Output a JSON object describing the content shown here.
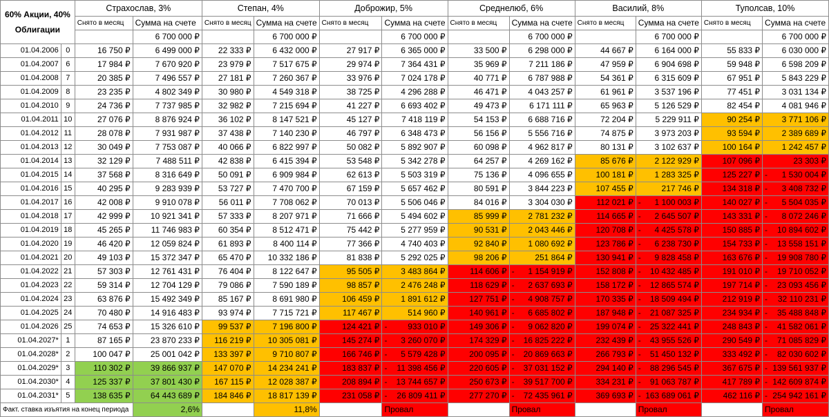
{
  "corner_label": "60% Акции, 40% Облигации",
  "sub_headers": {
    "withdraw": "Снято в месяц",
    "balance": "Сумма на счете"
  },
  "initial_balance": "6 700 000 ₽",
  "footer": {
    "label": "Факт. ставка изъятия на конец периода"
  },
  "colors": {
    "green": "#92d050",
    "yellow": "#ffc000",
    "red": "#ff0000"
  },
  "strategies": [
    {
      "name": "Страхослав, 3%",
      "result": "2,6%"
    },
    {
      "name": "Степан, 4%",
      "result": "11,8%"
    },
    {
      "name": "Доброжир, 5%",
      "result": "Провал"
    },
    {
      "name": "Среднелюб, 6%",
      "result": "Провал"
    },
    {
      "name": "Василий, 8%",
      "result": "Провал"
    },
    {
      "name": "Туполсав, 10%",
      "result": "Провал"
    }
  ],
  "rows": [
    {
      "date": "01.04.2006",
      "idx": "0",
      "cells": [
        [
          "16 750 ₽",
          "6 499 000 ₽",
          "w"
        ],
        [
          "22 333 ₽",
          "6 432 000 ₽",
          "w"
        ],
        [
          "27 917 ₽",
          "6 365 000 ₽",
          "w"
        ],
        [
          "33 500 ₽",
          "6 298 000 ₽",
          "w"
        ],
        [
          "44 667 ₽",
          "6 164 000 ₽",
          "w"
        ],
        [
          "55 833 ₽",
          "6 030 000 ₽",
          "w"
        ]
      ]
    },
    {
      "date": "01.04.2007",
      "idx": "6",
      "cells": [
        [
          "17 984 ₽",
          "7 670 920 ₽",
          "w"
        ],
        [
          "23 979 ₽",
          "7 517 675 ₽",
          "w"
        ],
        [
          "29 974 ₽",
          "7 364 431 ₽",
          "w"
        ],
        [
          "35 969 ₽",
          "7 211 186 ₽",
          "w"
        ],
        [
          "47 959 ₽",
          "6 904 698 ₽",
          "w"
        ],
        [
          "59 948 ₽",
          "6 598 209 ₽",
          "w"
        ]
      ]
    },
    {
      "date": "01.04.2008",
      "idx": "7",
      "cells": [
        [
          "20 385 ₽",
          "7 496 557 ₽",
          "w"
        ],
        [
          "27 181 ₽",
          "7 260 367 ₽",
          "w"
        ],
        [
          "33 976 ₽",
          "7 024 178 ₽",
          "w"
        ],
        [
          "40 771 ₽",
          "6 787 988 ₽",
          "w"
        ],
        [
          "54 361 ₽",
          "6 315 609 ₽",
          "w"
        ],
        [
          "67 951 ₽",
          "5 843 229 ₽",
          "w"
        ]
      ]
    },
    {
      "date": "01.04.2009",
      "idx": "8",
      "cells": [
        [
          "23 235 ₽",
          "4 802 349 ₽",
          "w"
        ],
        [
          "30 980 ₽",
          "4 549 318 ₽",
          "w"
        ],
        [
          "38 725 ₽",
          "4 296 288 ₽",
          "w"
        ],
        [
          "46 471 ₽",
          "4 043 257 ₽",
          "w"
        ],
        [
          "61 961 ₽",
          "3 537 196 ₽",
          "w"
        ],
        [
          "77 451 ₽",
          "3 031 134 ₽",
          "w"
        ]
      ]
    },
    {
      "date": "01.04.2010",
      "idx": "9",
      "cells": [
        [
          "24 736 ₽",
          "7 737 985 ₽",
          "w"
        ],
        [
          "32 982 ₽",
          "7 215 694 ₽",
          "w"
        ],
        [
          "41 227 ₽",
          "6 693 402 ₽",
          "w"
        ],
        [
          "49 473 ₽",
          "6 171 111 ₽",
          "w"
        ],
        [
          "65 963 ₽",
          "5 126 529 ₽",
          "w"
        ],
        [
          "82 454 ₽",
          "4 081 946 ₽",
          "w"
        ]
      ]
    },
    {
      "date": "01.04.2011",
      "idx": "10",
      "cells": [
        [
          "27 076 ₽",
          "8 876 924 ₽",
          "w"
        ],
        [
          "36 102 ₽",
          "8 147 521 ₽",
          "w"
        ],
        [
          "45 127 ₽",
          "7 418 119 ₽",
          "w"
        ],
        [
          "54 153 ₽",
          "6 688 716 ₽",
          "w"
        ],
        [
          "72 204 ₽",
          "5 229 911 ₽",
          "w"
        ],
        [
          "90 254 ₽",
          "3 771 106 ₽",
          "y"
        ]
      ]
    },
    {
      "date": "01.04.2012",
      "idx": "11",
      "cells": [
        [
          "28 078 ₽",
          "7 931 987 ₽",
          "w"
        ],
        [
          "37 438 ₽",
          "7 140 230 ₽",
          "w"
        ],
        [
          "46 797 ₽",
          "6 348 473 ₽",
          "w"
        ],
        [
          "56 156 ₽",
          "5 556 716 ₽",
          "w"
        ],
        [
          "74 875 ₽",
          "3 973 203 ₽",
          "w"
        ],
        [
          "93 594 ₽",
          "2 389 689 ₽",
          "y"
        ]
      ]
    },
    {
      "date": "01.04.2013",
      "idx": "12",
      "cells": [
        [
          "30 049 ₽",
          "7 753 087 ₽",
          "w"
        ],
        [
          "40 066 ₽",
          "6 822 997 ₽",
          "w"
        ],
        [
          "50 082 ₽",
          "5 892 907 ₽",
          "w"
        ],
        [
          "60 098 ₽",
          "4 962 817 ₽",
          "w"
        ],
        [
          "80 131 ₽",
          "3 102 637 ₽",
          "w"
        ],
        [
          "100 164 ₽",
          "1 242 457 ₽",
          "y"
        ]
      ]
    },
    {
      "date": "01.04.2014",
      "idx": "13",
      "cells": [
        [
          "32 129 ₽",
          "7 488 511 ₽",
          "w"
        ],
        [
          "42 838 ₽",
          "6 415 394 ₽",
          "w"
        ],
        [
          "53 548 ₽",
          "5 342 278 ₽",
          "w"
        ],
        [
          "64 257 ₽",
          "4 269 162 ₽",
          "w"
        ],
        [
          "85 676 ₽",
          "2 122 929 ₽",
          "y"
        ],
        [
          "107 096 ₽",
          "23 303 ₽",
          "r"
        ]
      ]
    },
    {
      "date": "01.04.2015",
      "idx": "14",
      "cells": [
        [
          "37 568 ₽",
          "8 316 649 ₽",
          "w"
        ],
        [
          "50 091 ₽",
          "6 909 984 ₽",
          "w"
        ],
        [
          "62 613 ₽",
          "5 503 319 ₽",
          "w"
        ],
        [
          "75 136 ₽",
          "4 096 655 ₽",
          "w"
        ],
        [
          "100 181 ₽",
          "1 283 325 ₽",
          "y"
        ],
        [
          "125 227 ₽",
          "-1 530 004 ₽",
          "r"
        ]
      ]
    },
    {
      "date": "01.04.2016",
      "idx": "15",
      "cells": [
        [
          "40 295 ₽",
          "9 283 939 ₽",
          "w"
        ],
        [
          "53 727 ₽",
          "7 470 700 ₽",
          "w"
        ],
        [
          "67 159 ₽",
          "5 657 462 ₽",
          "w"
        ],
        [
          "80 591 ₽",
          "3 844 223 ₽",
          "w"
        ],
        [
          "107 455 ₽",
          "217 746 ₽",
          "y"
        ],
        [
          "134 318 ₽",
          "-3 408 732 ₽",
          "r"
        ]
      ]
    },
    {
      "date": "01.04.2017",
      "idx": "16",
      "cells": [
        [
          "42 008 ₽",
          "9 910 078 ₽",
          "w"
        ],
        [
          "56 011 ₽",
          "7 708 062 ₽",
          "w"
        ],
        [
          "70 013 ₽",
          "5 506 046 ₽",
          "w"
        ],
        [
          "84 016 ₽",
          "3 304 030 ₽",
          "w"
        ],
        [
          "112 021 ₽",
          "-1 100 003 ₽",
          "r"
        ],
        [
          "140 027 ₽",
          "-5 504 035 ₽",
          "r"
        ]
      ]
    },
    {
      "date": "01.04.2018",
      "idx": "17",
      "cells": [
        [
          "42 999 ₽",
          "10 921 341 ₽",
          "w"
        ],
        [
          "57 333 ₽",
          "8 207 971 ₽",
          "w"
        ],
        [
          "71 666 ₽",
          "5 494 602 ₽",
          "w"
        ],
        [
          "85 999 ₽",
          "2 781 232 ₽",
          "y"
        ],
        [
          "114 665 ₽",
          "-2 645 507 ₽",
          "r"
        ],
        [
          "143 331 ₽",
          "-8 072 246 ₽",
          "r"
        ]
      ]
    },
    {
      "date": "01.04.2019",
      "idx": "18",
      "cells": [
        [
          "45 265 ₽",
          "11 746 983 ₽",
          "w"
        ],
        [
          "60 354 ₽",
          "8 512 471 ₽",
          "w"
        ],
        [
          "75 442 ₽",
          "5 277 959 ₽",
          "w"
        ],
        [
          "90 531 ₽",
          "2 043 446 ₽",
          "y"
        ],
        [
          "120 708 ₽",
          "-4 425 578 ₽",
          "r"
        ],
        [
          "150 885 ₽",
          "-10 894 602 ₽",
          "r"
        ]
      ]
    },
    {
      "date": "01.04.2020",
      "idx": "19",
      "cells": [
        [
          "46 420 ₽",
          "12 059 824 ₽",
          "w"
        ],
        [
          "61 893 ₽",
          "8 400 114 ₽",
          "w"
        ],
        [
          "77 366 ₽",
          "4 740 403 ₽",
          "w"
        ],
        [
          "92 840 ₽",
          "1 080 692 ₽",
          "y"
        ],
        [
          "123 786 ₽",
          "-6 238 730 ₽",
          "r"
        ],
        [
          "154 733 ₽",
          "-13 558 151 ₽",
          "r"
        ]
      ]
    },
    {
      "date": "01.04.2021",
      "idx": "20",
      "cells": [
        [
          "49 103 ₽",
          "15 372 347 ₽",
          "w"
        ],
        [
          "65 470 ₽",
          "10 332 186 ₽",
          "w"
        ],
        [
          "81 838 ₽",
          "5 292 025 ₽",
          "w"
        ],
        [
          "98 206 ₽",
          "251 864 ₽",
          "y"
        ],
        [
          "130 941 ₽",
          "-9 828 458 ₽",
          "r"
        ],
        [
          "163 676 ₽",
          "-19 908 780 ₽",
          "r"
        ]
      ]
    },
    {
      "date": "01.04.2022",
      "idx": "21",
      "cells": [
        [
          "57 303 ₽",
          "12 761 431 ₽",
          "w"
        ],
        [
          "76 404 ₽",
          "8 122 647 ₽",
          "w"
        ],
        [
          "95 505 ₽",
          "3 483 864 ₽",
          "y"
        ],
        [
          "114 606 ₽",
          "-1 154 919 ₽",
          "r"
        ],
        [
          "152 808 ₽",
          "-10 432 485 ₽",
          "r"
        ],
        [
          "191 010 ₽",
          "-19 710 052 ₽",
          "r"
        ]
      ]
    },
    {
      "date": "01.04.2023",
      "idx": "22",
      "cells": [
        [
          "59 314 ₽",
          "12 704 129 ₽",
          "w"
        ],
        [
          "79 086 ₽",
          "7 590 189 ₽",
          "w"
        ],
        [
          "98 857 ₽",
          "2 476 248 ₽",
          "y"
        ],
        [
          "118 629 ₽",
          "-2 637 693 ₽",
          "r"
        ],
        [
          "158 172 ₽",
          "-12 865 574 ₽",
          "r"
        ],
        [
          "197 714 ₽",
          "-23 093 456 ₽",
          "r"
        ]
      ]
    },
    {
      "date": "01.04.2024",
      "idx": "23",
      "cells": [
        [
          "63 876 ₽",
          "15 492 349 ₽",
          "w"
        ],
        [
          "85 167 ₽",
          "8 691 980 ₽",
          "w"
        ],
        [
          "106 459 ₽",
          "1 891 612 ₽",
          "y"
        ],
        [
          "127 751 ₽",
          "-4 908 757 ₽",
          "r"
        ],
        [
          "170 335 ₽",
          "-18 509 494 ₽",
          "r"
        ],
        [
          "212 919 ₽",
          "-32 110 231 ₽",
          "r"
        ]
      ]
    },
    {
      "date": "01.04.2025",
      "idx": "24",
      "cells": [
        [
          "70 480 ₽",
          "14 916 483 ₽",
          "w"
        ],
        [
          "93 974 ₽",
          "7 715 721 ₽",
          "w"
        ],
        [
          "117 467 ₽",
          "514 960 ₽",
          "y"
        ],
        [
          "140 961 ₽",
          "-6 685 802 ₽",
          "r"
        ],
        [
          "187 948 ₽",
          "-21 087 325 ₽",
          "r"
        ],
        [
          "234 934 ₽",
          "-35 488 848 ₽",
          "r"
        ]
      ]
    },
    {
      "date": "01.04.2026",
      "idx": "25",
      "cells": [
        [
          "74 653 ₽",
          "15 326 610 ₽",
          "w"
        ],
        [
          "99 537 ₽",
          "7 196 800 ₽",
          "y"
        ],
        [
          "124 421 ₽",
          "-933 010 ₽",
          "r"
        ],
        [
          "149 306 ₽",
          "-9 062 820 ₽",
          "r"
        ],
        [
          "199 074 ₽",
          "-25 322 441 ₽",
          "r"
        ],
        [
          "248 843 ₽",
          "-41 582 061 ₽",
          "r"
        ]
      ]
    },
    {
      "date": "01.04.2027*",
      "idx": "1",
      "cells": [
        [
          "87 165 ₽",
          "23 870 233 ₽",
          "w"
        ],
        [
          "116 219 ₽",
          "10 305 081 ₽",
          "y"
        ],
        [
          "145 274 ₽",
          "-3 260 070 ₽",
          "r"
        ],
        [
          "174 329 ₽",
          "-16 825 222 ₽",
          "r"
        ],
        [
          "232 439 ₽",
          "-43 955 526 ₽",
          "r"
        ],
        [
          "290 549 ₽",
          "-71 085 829 ₽",
          "r"
        ]
      ]
    },
    {
      "date": "01.04.2028*",
      "idx": "2",
      "cells": [
        [
          "100 047 ₽",
          "25 001 042 ₽",
          "w"
        ],
        [
          "133 397 ₽",
          "9 710 807 ₽",
          "y"
        ],
        [
          "166 746 ₽",
          "-5 579 428 ₽",
          "r"
        ],
        [
          "200 095 ₽",
          "-20 869 663 ₽",
          "r"
        ],
        [
          "266 793 ₽",
          "-51 450 132 ₽",
          "r"
        ],
        [
          "333 492 ₽",
          "-82 030 602 ₽",
          "r"
        ]
      ]
    },
    {
      "date": "01.04.2029*",
      "idx": "3",
      "cells": [
        [
          "110 302 ₽",
          "39 866 937 ₽",
          "g"
        ],
        [
          "147 070 ₽",
          "14 234 241 ₽",
          "y"
        ],
        [
          "183 837 ₽",
          "-11 398 456 ₽",
          "r"
        ],
        [
          "220 605 ₽",
          "-37 031 152 ₽",
          "r"
        ],
        [
          "294 140 ₽",
          "-88 296 545 ₽",
          "r"
        ],
        [
          "367 675 ₽",
          "-139 561 937 ₽",
          "r"
        ]
      ]
    },
    {
      "date": "01.04.2030*",
      "idx": "4",
      "cells": [
        [
          "125 337 ₽",
          "37 801 430 ₽",
          "g"
        ],
        [
          "167 115 ₽",
          "12 028 387 ₽",
          "y"
        ],
        [
          "208 894 ₽",
          "-13 744 657 ₽",
          "r"
        ],
        [
          "250 673 ₽",
          "-39 517 700 ₽",
          "r"
        ],
        [
          "334 231 ₽",
          "-91 063 787 ₽",
          "r"
        ],
        [
          "417 789 ₽",
          "-142 609 874 ₽",
          "r"
        ]
      ]
    },
    {
      "date": "01.04.2031*",
      "idx": "5",
      "cells": [
        [
          "138 635 ₽",
          "64 443 689 ₽",
          "g"
        ],
        [
          "184 846 ₽",
          "18 817 139 ₽",
          "y"
        ],
        [
          "231 058 ₽",
          "-26 809 411 ₽",
          "r"
        ],
        [
          "277 270 ₽",
          "-72 435 961 ₽",
          "r"
        ],
        [
          "369 693 ₽",
          "-163 689 061 ₽",
          "r"
        ],
        [
          "462 116 ₽",
          "-254 942 161 ₽",
          "r"
        ]
      ]
    }
  ]
}
